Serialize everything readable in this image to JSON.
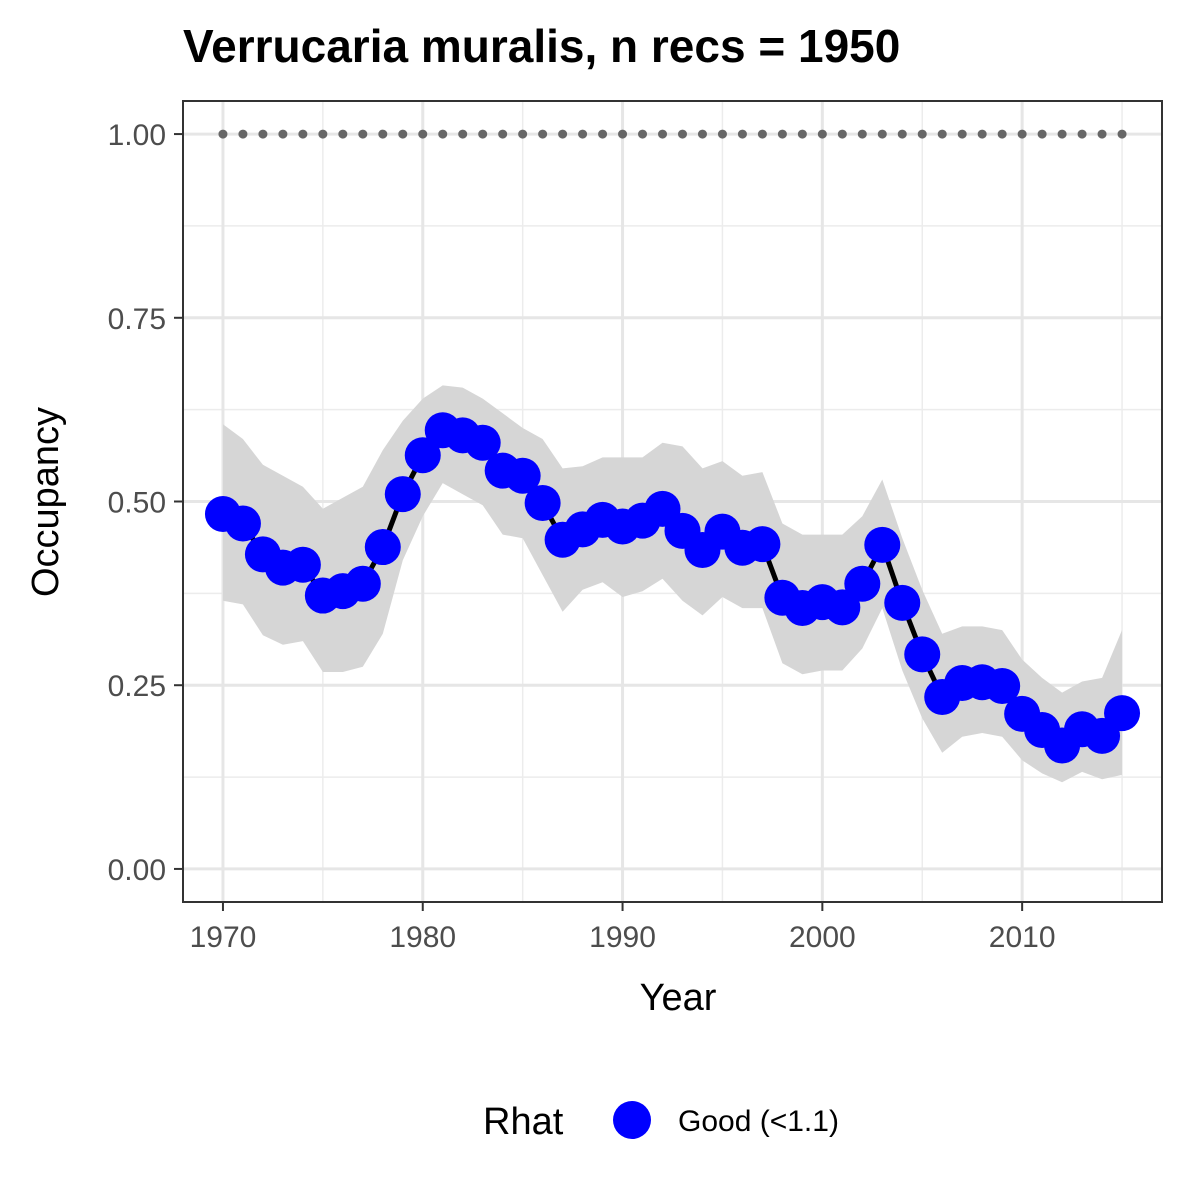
{
  "chart_data": {
    "type": "line",
    "title": "Verrucaria muralis, n recs = 1950",
    "xlabel": "Year",
    "ylabel": "Occupancy",
    "xlim": [
      1968,
      2017
    ],
    "ylim": [
      -0.045,
      1.045
    ],
    "x_ticks": [
      1970,
      1980,
      1990,
      2000,
      2010
    ],
    "x_tick_labels": [
      "1970",
      "1980",
      "1990",
      "2000",
      "2010"
    ],
    "y_ticks": [
      0,
      0.25,
      0.5,
      0.75,
      1.0
    ],
    "y_tick_labels": [
      "0.00",
      "0.25",
      "0.50",
      "0.75",
      "1.00"
    ],
    "grid": true,
    "legend_placement": "bottom",
    "legend": {
      "title": "Rhat",
      "entries": [
        {
          "label": "Good (<1.1)",
          "color": "#0000ff"
        }
      ]
    },
    "colors": {
      "points": "#0000ff",
      "line": "#000000",
      "ribbon": "#d6d6d6",
      "reference_dots": "#666666"
    },
    "x": [
      1970,
      1971,
      1972,
      1973,
      1974,
      1975,
      1976,
      1977,
      1978,
      1979,
      1980,
      1981,
      1982,
      1983,
      1984,
      1985,
      1986,
      1987,
      1988,
      1989,
      1990,
      1991,
      1992,
      1993,
      1994,
      1995,
      1996,
      1997,
      1998,
      1999,
      2000,
      2001,
      2002,
      2003,
      2004,
      2005,
      2006,
      2007,
      2008,
      2009,
      2010,
      2011,
      2012,
      2013,
      2014,
      2015
    ],
    "series": [
      {
        "values": [
          0.483,
          0.47,
          0.428,
          0.41,
          0.414,
          0.372,
          0.378,
          0.388,
          0.438,
          0.51,
          0.563,
          0.597,
          0.59,
          0.58,
          0.542,
          0.535,
          0.498,
          0.448,
          0.462,
          0.475,
          0.466,
          0.474,
          0.49,
          0.46,
          0.434,
          0.459,
          0.437,
          0.442,
          0.369,
          0.355,
          0.363,
          0.356,
          0.388,
          0.441,
          0.362,
          0.292,
          0.234,
          0.253,
          0.254,
          0.249,
          0.211,
          0.189,
          0.168,
          0.19,
          0.181,
          0.212
        ],
        "lower": [
          0.365,
          0.36,
          0.318,
          0.305,
          0.31,
          0.268,
          0.268,
          0.275,
          0.32,
          0.42,
          0.48,
          0.525,
          0.51,
          0.495,
          0.455,
          0.45,
          0.4,
          0.35,
          0.38,
          0.39,
          0.37,
          0.378,
          0.395,
          0.365,
          0.345,
          0.37,
          0.355,
          0.355,
          0.28,
          0.265,
          0.27,
          0.27,
          0.3,
          0.355,
          0.27,
          0.205,
          0.158,
          0.18,
          0.185,
          0.18,
          0.148,
          0.13,
          0.118,
          0.132,
          0.122,
          0.128
        ],
        "upper": [
          0.605,
          0.585,
          0.55,
          0.535,
          0.52,
          0.49,
          0.505,
          0.52,
          0.57,
          0.61,
          0.64,
          0.658,
          0.655,
          0.64,
          0.62,
          0.6,
          0.585,
          0.545,
          0.548,
          0.56,
          0.56,
          0.56,
          0.58,
          0.575,
          0.545,
          0.555,
          0.535,
          0.54,
          0.47,
          0.455,
          0.455,
          0.455,
          0.48,
          0.53,
          0.45,
          0.38,
          0.32,
          0.33,
          0.33,
          0.325,
          0.285,
          0.26,
          0.24,
          0.255,
          0.26,
          0.325
        ]
      }
    ],
    "reference_dots": {
      "y": 1.0,
      "x": [
        1970,
        1971,
        1972,
        1973,
        1974,
        1975,
        1976,
        1977,
        1978,
        1979,
        1980,
        1981,
        1982,
        1983,
        1984,
        1985,
        1986,
        1987,
        1988,
        1989,
        1990,
        1991,
        1992,
        1993,
        1994,
        1995,
        1996,
        1997,
        1998,
        1999,
        2000,
        2001,
        2002,
        2003,
        2004,
        2005,
        2006,
        2007,
        2008,
        2009,
        2010,
        2011,
        2012,
        2013,
        2014,
        2015
      ]
    }
  }
}
